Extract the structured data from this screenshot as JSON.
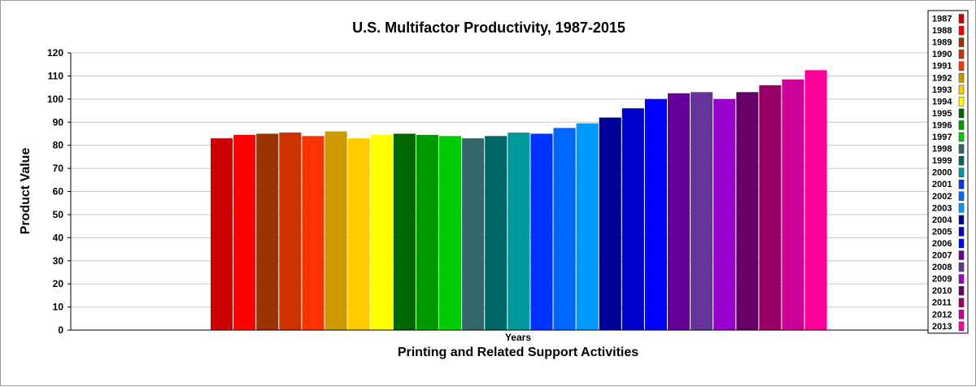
{
  "chart_data": {
    "type": "bar",
    "title": "U.S. Multifactor Productivity, 1987-2015",
    "xlabel": "Printing and Related Support Activities",
    "x_category_label": "Years",
    "ylabel": "Product Value",
    "ylim": [
      0,
      120
    ],
    "yticks": [
      0,
      10,
      20,
      30,
      40,
      50,
      60,
      70,
      80,
      90,
      100,
      110,
      120
    ],
    "grid": true,
    "legend_position": "right",
    "series": [
      {
        "name": "1987",
        "value": 83.0,
        "color": "#cc0000"
      },
      {
        "name": "1988",
        "value": 84.5,
        "color": "#ff0000"
      },
      {
        "name": "1989",
        "value": 85.0,
        "color": "#993300"
      },
      {
        "name": "1990",
        "value": 85.5,
        "color": "#cc3300"
      },
      {
        "name": "1991",
        "value": 84.0,
        "color": "#ff3300"
      },
      {
        "name": "1992",
        "value": 86.0,
        "color": "#cc9900"
      },
      {
        "name": "1993",
        "value": 83.0,
        "color": "#ffcc00"
      },
      {
        "name": "1994",
        "value": 84.5,
        "color": "#ffff00"
      },
      {
        "name": "1995",
        "value": 85.0,
        "color": "#006600"
      },
      {
        "name": "1996",
        "value": 84.5,
        "color": "#009900"
      },
      {
        "name": "1997",
        "value": 84.0,
        "color": "#00cc00"
      },
      {
        "name": "1998",
        "value": 83.0,
        "color": "#336666"
      },
      {
        "name": "1999",
        "value": 84.0,
        "color": "#006666"
      },
      {
        "name": "2000",
        "value": 85.5,
        "color": "#009999"
      },
      {
        "name": "2001",
        "value": 85.0,
        "color": "#0033ff"
      },
      {
        "name": "2002",
        "value": 87.5,
        "color": "#0066ff"
      },
      {
        "name": "2003",
        "value": 89.5,
        "color": "#0099ff"
      },
      {
        "name": "2004",
        "value": 92.0,
        "color": "#000099"
      },
      {
        "name": "2005",
        "value": 96.0,
        "color": "#0000cc"
      },
      {
        "name": "2006",
        "value": 100.0,
        "color": "#0000ff"
      },
      {
        "name": "2007",
        "value": 102.5,
        "color": "#660099"
      },
      {
        "name": "2008",
        "value": 103.0,
        "color": "#663399"
      },
      {
        "name": "2009",
        "value": 100.0,
        "color": "#9900cc"
      },
      {
        "name": "2010",
        "value": 103.0,
        "color": "#660066"
      },
      {
        "name": "2011",
        "value": 106.0,
        "color": "#990066"
      },
      {
        "name": "2012",
        "value": 108.5,
        "color": "#cc0099"
      },
      {
        "name": "2013",
        "value": 112.5,
        "color": "#ff0099"
      }
    ]
  }
}
